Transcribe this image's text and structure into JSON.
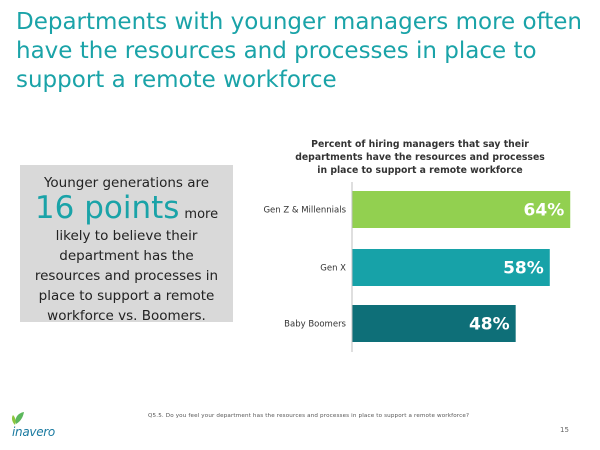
{
  "title": "Departments with younger managers more often have the resources and processes in place to support a remote workforce",
  "callout": {
    "line1": "Younger generations are",
    "highlight": "16 points",
    "more": "more",
    "rest": "likely to believe their department has the resources and processes in place to support a remote workforce vs. Boomers."
  },
  "chart_data": {
    "type": "bar",
    "orientation": "horizontal",
    "title": "Percent of hiring managers that say their departments have the resources and processes in place to support a remote workforce",
    "categories": [
      "Gen Z & Millennials",
      "Gen X",
      "Baby Boomers"
    ],
    "values": [
      64,
      58,
      48
    ],
    "value_labels": [
      "64%",
      "58%",
      "48%"
    ],
    "colors": [
      "#92d050",
      "#17a2a8",
      "#0e6f78"
    ],
    "xlim": [
      0,
      70
    ],
    "xlabel": "",
    "ylabel": "",
    "grid": false
  },
  "footnote": "Q5.5. Do you feel your department has the resources and processes in place to support a remote workforce?",
  "page_number": "15",
  "logo": {
    "text": "inavero",
    "mark_color": "#5cb85c"
  }
}
